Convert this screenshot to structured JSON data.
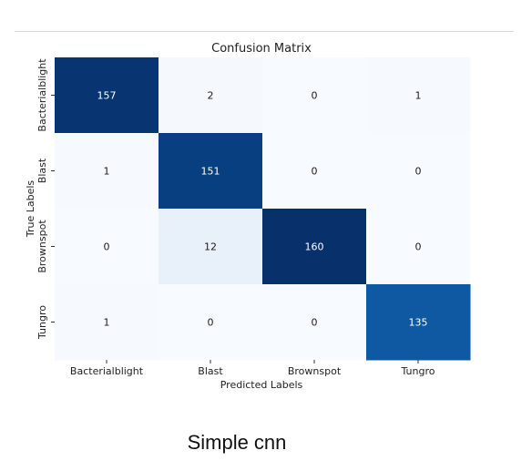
{
  "caption": "Simple cnn",
  "chart_data": {
    "type": "heatmap",
    "title": "Confusion Matrix",
    "xlabel": "Predicted Labels",
    "ylabel": "True Labels",
    "x_categories": [
      "Bacterialblight",
      "Blast",
      "Brownspot",
      "Tungro"
    ],
    "y_categories": [
      "Bacterialblight",
      "Blast",
      "Brownspot",
      "Tungro"
    ],
    "values": [
      [
        157,
        2,
        0,
        1
      ],
      [
        1,
        151,
        0,
        0
      ],
      [
        0,
        12,
        160,
        0
      ],
      [
        1,
        0,
        0,
        135
      ]
    ],
    "colormap": "Blues",
    "colorbar": false,
    "low_color": "#f7fbff",
    "high_color": "#08306b"
  }
}
